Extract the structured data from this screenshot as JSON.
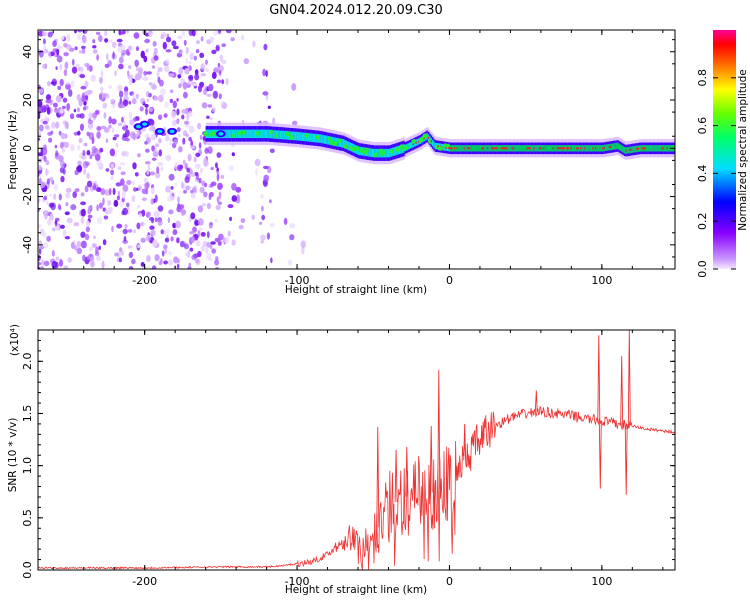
{
  "title": "GN04.2024.012.20.09.C30",
  "chart_data": [
    {
      "type": "heatmap",
      "title": "GN04.2024.012.20.09.C30",
      "xlabel": "Height of straight line (km)",
      "ylabel": "Frequency (Hz)",
      "xlim": [
        -270,
        148
      ],
      "ylim": [
        -50,
        49
      ],
      "xticks": [
        -200,
        -100,
        0,
        100
      ],
      "xtick_labels": [
        "-200",
        "-100",
        "0",
        "100"
      ],
      "yticks": [
        -40,
        -20,
        0,
        20,
        40
      ],
      "ytick_labels": [
        "-40",
        "-20",
        "0",
        "20",
        "40"
      ],
      "colorbar": {
        "label": "Normalized spectral amplitude",
        "range": [
          0.0,
          1.0
        ],
        "ticks": [
          0.0,
          0.2,
          0.4,
          0.6,
          0.8
        ],
        "tick_labels": [
          "0.0",
          "0.2",
          "0.4",
          "0.6",
          "0.8"
        ]
      },
      "ridge": {
        "x": [
          -210,
          -200,
          -185,
          -160,
          -140,
          -120,
          -100,
          -85,
          -70,
          -60,
          -50,
          -40,
          -30,
          -20,
          -15,
          -10,
          0,
          20,
          40,
          60,
          80,
          100,
          110,
          115,
          125,
          148
        ],
        "y": [
          9,
          10,
          7,
          6,
          6,
          6,
          5,
          4,
          2,
          -1,
          -2,
          -2,
          0,
          3,
          5,
          1,
          0,
          0,
          0,
          0,
          0,
          0,
          1,
          -1,
          0,
          0
        ]
      },
      "noise_region_x": [
        -270,
        -120
      ],
      "colors": [
        "#cc99ff",
        "#8800ff",
        "#0000ff",
        "#00ffff",
        "#00ff00",
        "#ffff00",
        "#ff0000",
        "#ff0099"
      ]
    },
    {
      "type": "line",
      "xlabel": "Height of straight line (km)",
      "ylabel": "SNR (10 * v/v)",
      "y_multiplier": "(x10⁴)",
      "xlim": [
        -270,
        148
      ],
      "ylim": [
        0,
        2.3
      ],
      "xticks": [
        -200,
        -100,
        0,
        100
      ],
      "xtick_labels": [
        "-200",
        "-100",
        "0",
        "100"
      ],
      "yticks": [
        0.0,
        0.5,
        1.0,
        1.5,
        2.0
      ],
      "ytick_labels": [
        "0.0",
        "0.5",
        "1.0",
        "1.5",
        "2.0"
      ],
      "series_color": "#ee3333",
      "x": [
        -270,
        -250,
        -200,
        -150,
        -120,
        -110,
        -100,
        -90,
        -80,
        -70,
        -65,
        -60,
        -55,
        -50,
        -45,
        -40,
        -30,
        -20,
        -10,
        0,
        10,
        20,
        30,
        40,
        50,
        60,
        70,
        80,
        90,
        100,
        110,
        120,
        130,
        148
      ],
      "y": [
        0.02,
        0.02,
        0.02,
        0.03,
        0.03,
        0.04,
        0.06,
        0.08,
        0.15,
        0.28,
        0.32,
        0.22,
        0.25,
        0.35,
        0.45,
        0.6,
        0.7,
        0.72,
        0.75,
        0.85,
        1.05,
        1.25,
        1.38,
        1.46,
        1.5,
        1.52,
        1.5,
        1.48,
        1.45,
        1.43,
        1.4,
        1.38,
        1.35,
        1.32
      ],
      "spikes": [
        {
          "x": -47,
          "y": 1.37
        },
        {
          "x": -35,
          "y": 1.15
        },
        {
          "x": -28,
          "y": 1.18
        },
        {
          "x": -12,
          "y": 1.38
        },
        {
          "x": -7,
          "y": 1.92
        },
        {
          "x": 10,
          "y": 1.4
        },
        {
          "x": 57,
          "y": 1.72
        },
        {
          "x": 98,
          "y": 2.25
        },
        {
          "x": 99,
          "y": 0.78
        },
        {
          "x": 113,
          "y": 2.05
        },
        {
          "x": 118,
          "y": 2.3
        },
        {
          "x": 116,
          "y": 0.72
        }
      ]
    }
  ]
}
